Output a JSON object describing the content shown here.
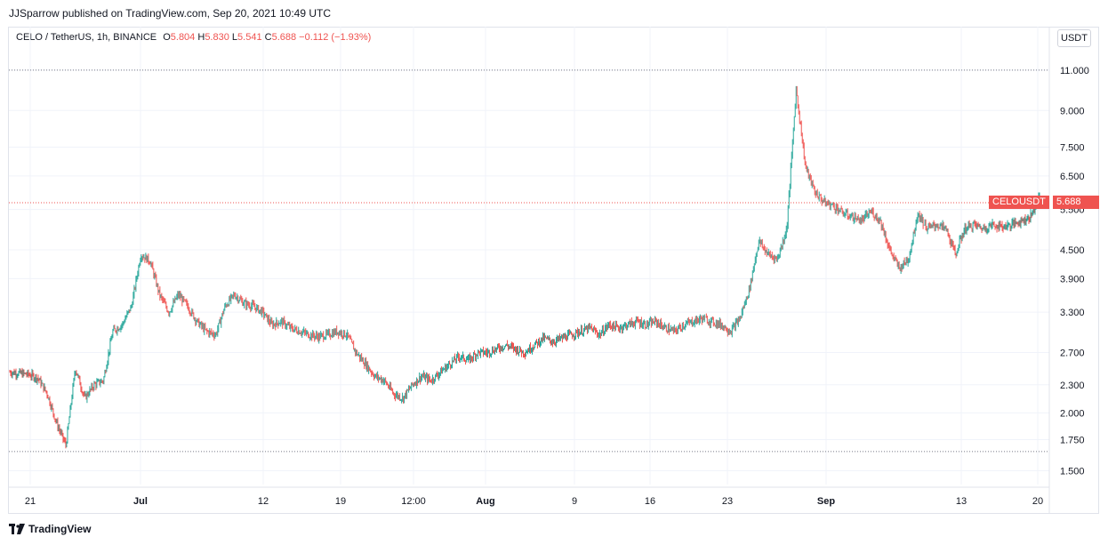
{
  "header": {
    "publisher": "JJSparrow published on TradingView.com, Sep 20, 2021 10:49 UTC"
  },
  "legend": {
    "symbol": "CELO / TetherUS, 1h, BINANCE",
    "o_label": "O",
    "o_value": "5.804",
    "h_label": "H",
    "h_value": "5.830",
    "l_label": "L",
    "l_value": "5.541",
    "c_label": "C",
    "c_value": "5.688",
    "change": "−0.112 (−1.93%)"
  },
  "axis_currency_button": "USDT",
  "price_tag": {
    "name": "CELOUSDT",
    "value": "5.688"
  },
  "footer": {
    "brand": "TradingView"
  },
  "colors": {
    "up": "#26a69a",
    "down": "#ef5350",
    "grid": "#f0f3fa",
    "dotted": "#787b86",
    "current": "#ef5350"
  },
  "chart_data": {
    "type": "candlestick",
    "scale": "log",
    "ylim": [
      1.4,
      12.5
    ],
    "y_ticks": [
      "11.000",
      "9.000",
      "7.500",
      "6.500",
      "5.500",
      "4.500",
      "3.900",
      "3.300",
      "2.700",
      "2.300",
      "2.000",
      "1.750",
      "1.500"
    ],
    "x_ticks": [
      "21",
      "Jul",
      "12",
      "19",
      "12:00",
      "Aug",
      "9",
      "16",
      "23",
      "Sep",
      "13",
      "20"
    ],
    "x_ticks_bold": [
      "Jul",
      "Aug",
      "Sep"
    ],
    "horizontal_levels": [
      11.0,
      1.65
    ],
    "current_price": 5.688,
    "path": [
      [
        0,
        2.45
      ],
      [
        2,
        2.42
      ],
      [
        3,
        2.38
      ],
      [
        4,
        2.2
      ],
      [
        5,
        1.9
      ],
      [
        6,
        1.7
      ],
      [
        7,
        2.5
      ],
      [
        8,
        2.15
      ],
      [
        9,
        2.3
      ],
      [
        10,
        2.35
      ],
      [
        11,
        3.0
      ],
      [
        12,
        3.1
      ],
      [
        13,
        3.4
      ],
      [
        14,
        4.4
      ],
      [
        15,
        4.25
      ],
      [
        16,
        3.6
      ],
      [
        17,
        3.3
      ],
      [
        18,
        3.6
      ],
      [
        19,
        3.4
      ],
      [
        20,
        3.15
      ],
      [
        21,
        3.0
      ],
      [
        22,
        2.95
      ],
      [
        23,
        3.4
      ],
      [
        24,
        3.6
      ],
      [
        25,
        3.45
      ],
      [
        26,
        3.4
      ],
      [
        27,
        3.3
      ],
      [
        28,
        3.1
      ],
      [
        29,
        3.15
      ],
      [
        30,
        3.05
      ],
      [
        31,
        3.0
      ],
      [
        32,
        2.95
      ],
      [
        33,
        2.92
      ],
      [
        34,
        2.95
      ],
      [
        35,
        3.0
      ],
      [
        36,
        2.95
      ],
      [
        37,
        2.7
      ],
      [
        38,
        2.55
      ],
      [
        39,
        2.4
      ],
      [
        40,
        2.35
      ],
      [
        41,
        2.2
      ],
      [
        42,
        2.15
      ],
      [
        43,
        2.3
      ],
      [
        44,
        2.4
      ],
      [
        45,
        2.35
      ],
      [
        46,
        2.45
      ],
      [
        47,
        2.55
      ],
      [
        48,
        2.65
      ],
      [
        49,
        2.6
      ],
      [
        50,
        2.7
      ],
      [
        51,
        2.7
      ],
      [
        52,
        2.75
      ],
      [
        53,
        2.8
      ],
      [
        54,
        2.75
      ],
      [
        55,
        2.7
      ],
      [
        56,
        2.8
      ],
      [
        57,
        2.9
      ],
      [
        58,
        2.85
      ],
      [
        59,
        2.9
      ],
      [
        60,
        2.95
      ],
      [
        61,
        3.0
      ],
      [
        62,
        3.05
      ],
      [
        63,
        2.95
      ],
      [
        64,
        3.1
      ],
      [
        65,
        3.05
      ],
      [
        66,
        3.1
      ],
      [
        67,
        3.15
      ],
      [
        68,
        3.1
      ],
      [
        69,
        3.15
      ],
      [
        70,
        3.05
      ],
      [
        71,
        3.0
      ],
      [
        72,
        3.1
      ],
      [
        73,
        3.15
      ],
      [
        74,
        3.2
      ],
      [
        75,
        3.15
      ],
      [
        76,
        3.1
      ],
      [
        77,
        3.0
      ],
      [
        78,
        3.2
      ],
      [
        79,
        3.7
      ],
      [
        80,
        4.7
      ],
      [
        81,
        4.4
      ],
      [
        82,
        4.3
      ],
      [
        83,
        5.0
      ],
      [
        84,
        10.0
      ],
      [
        85,
        6.8
      ],
      [
        86,
        6.0
      ],
      [
        87,
        5.7
      ],
      [
        88,
        5.6
      ],
      [
        89,
        5.4
      ],
      [
        90,
        5.3
      ],
      [
        91,
        5.2
      ],
      [
        92,
        5.45
      ],
      [
        93,
        5.2
      ],
      [
        94,
        4.5
      ],
      [
        95,
        4.1
      ],
      [
        96,
        4.3
      ],
      [
        97,
        5.4
      ],
      [
        98,
        5.0
      ],
      [
        99,
        5.1
      ],
      [
        100,
        5.0
      ],
      [
        101,
        4.4
      ],
      [
        102,
        5.0
      ],
      [
        103,
        5.1
      ],
      [
        104,
        5.0
      ],
      [
        105,
        5.1
      ],
      [
        106,
        5.05
      ],
      [
        107,
        5.1
      ],
      [
        108,
        5.2
      ],
      [
        109,
        5.3
      ],
      [
        110,
        5.9
      ]
    ]
  }
}
